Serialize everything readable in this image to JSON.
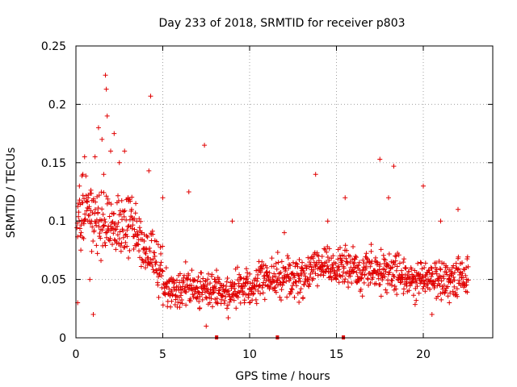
{
  "chart_data": {
    "type": "scatter",
    "title": "Day 233 of 2018, SRMTID for receiver p803",
    "xlabel": "GPS time / hours",
    "ylabel": "SRMTID / TECUs",
    "xlim": [
      0,
      24
    ],
    "ylim": [
      0,
      0.25
    ],
    "x_ticks": [
      0,
      5,
      10,
      15,
      20
    ],
    "y_ticks": [
      0,
      0.05,
      0.1,
      0.15,
      0.2,
      0.25
    ],
    "x_tick_labels": [
      "0",
      "5",
      "10",
      "15",
      "20"
    ],
    "y_tick_labels": [
      "0",
      "0.05",
      "0.1",
      "0.15",
      "0.2",
      "0.25"
    ],
    "grid": true,
    "marker": "+",
    "series": [
      {
        "name": "SRMTID",
        "color": "#e00000",
        "x_range": [
          0.05,
          22.6
        ],
        "points": [
          [
            0.1,
            0.03
          ],
          [
            0.2,
            0.13
          ],
          [
            0.3,
            0.09
          ],
          [
            0.4,
            0.14
          ],
          [
            0.5,
            0.155
          ],
          [
            0.7,
            0.12
          ],
          [
            0.8,
            0.05
          ],
          [
            0.9,
            0.1
          ],
          [
            1.0,
            0.02
          ],
          [
            1.1,
            0.155
          ],
          [
            1.3,
            0.18
          ],
          [
            1.5,
            0.17
          ],
          [
            1.6,
            0.14
          ],
          [
            1.7,
            0.225
          ],
          [
            1.75,
            0.213
          ],
          [
            1.8,
            0.19
          ],
          [
            2.0,
            0.16
          ],
          [
            2.2,
            0.175
          ],
          [
            2.5,
            0.15
          ],
          [
            2.8,
            0.16
          ],
          [
            3.0,
            0.12
          ],
          [
            3.5,
            0.1
          ],
          [
            4.0,
            0.06
          ],
          [
            4.2,
            0.143
          ],
          [
            4.3,
            0.207
          ],
          [
            5.0,
            0.12
          ],
          [
            5.2,
            0.06
          ],
          [
            6.0,
            0.03
          ],
          [
            6.5,
            0.125
          ],
          [
            7.0,
            0.035
          ],
          [
            7.4,
            0.165
          ],
          [
            7.5,
            0.01
          ],
          [
            8.0,
            0.05
          ],
          [
            9.0,
            0.1
          ],
          [
            10.0,
            0.03
          ],
          [
            11.0,
            0.06
          ],
          [
            12.0,
            0.09
          ],
          [
            13.0,
            0.06
          ],
          [
            13.8,
            0.14
          ],
          [
            14.5,
            0.1
          ],
          [
            15.5,
            0.12
          ],
          [
            16.0,
            0.06
          ],
          [
            17.0,
            0.08
          ],
          [
            17.5,
            0.153
          ],
          [
            18.0,
            0.12
          ],
          [
            18.3,
            0.147
          ],
          [
            19.0,
            0.06
          ],
          [
            20.0,
            0.13
          ],
          [
            20.5,
            0.02
          ],
          [
            21.0,
            0.1
          ],
          [
            21.5,
            0.03
          ],
          [
            22.0,
            0.11
          ],
          [
            22.5,
            0.05
          ]
        ]
      }
    ],
    "axis_markers": {
      "color": "#e00000",
      "x_values": [
        8.1,
        11.6,
        15.4
      ],
      "y_value": 0
    }
  }
}
